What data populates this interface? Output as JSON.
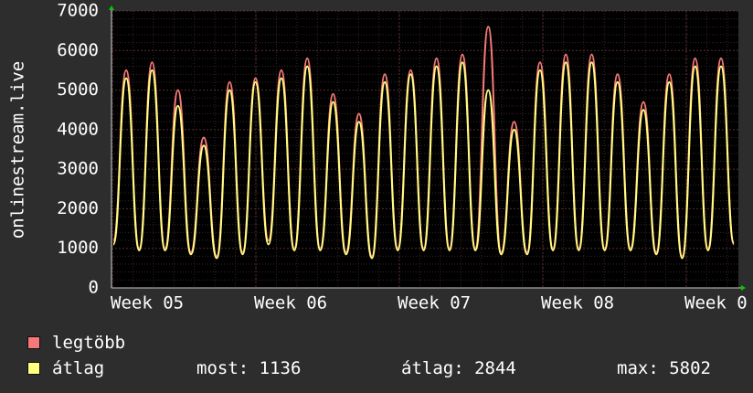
{
  "chart_data": {
    "type": "line",
    "ylabel": "onlinestream.live",
    "ylim": [
      0,
      7000
    ],
    "y_ticks": [
      "0",
      "1000",
      "2000",
      "3000",
      "4000",
      "5000",
      "6000",
      "7000"
    ],
    "x_ticks": [
      "Week 05",
      "Week 06",
      "Week 07",
      "Week 08",
      "Week 0"
    ],
    "grid": true,
    "colors": {
      "background": "#2d2d2d",
      "plot": "#000000",
      "grid": "#5a2e2e",
      "max": "#f77878",
      "avg": "#ffff80",
      "axis": "#00cc00"
    },
    "series": [
      {
        "name": "legtöbb",
        "color": "#f77878",
        "values": [
          1200,
          5500,
          1000,
          5700,
          1000,
          5000,
          900,
          3800,
          800,
          5200,
          900,
          5300,
          1200,
          5500,
          1000,
          5800,
          1000,
          4900,
          900,
          4400,
          800,
          5400,
          1000,
          5500,
          1000,
          5800,
          1000,
          5900,
          1000,
          6600,
          900,
          4200,
          900,
          5700,
          1000,
          5900,
          1000,
          5900,
          1000,
          5400,
          1000,
          4700,
          900,
          5400,
          800,
          5800,
          1000,
          5800,
          1100
        ]
      },
      {
        "name": "átlag",
        "color": "#ffff80",
        "values": [
          1100,
          5300,
          950,
          5500,
          950,
          4600,
          850,
          3600,
          750,
          5000,
          850,
          5200,
          1100,
          5300,
          950,
          5600,
          950,
          4700,
          850,
          4200,
          750,
          5200,
          950,
          5400,
          950,
          5600,
          950,
          5700,
          950,
          5000,
          850,
          4000,
          850,
          5500,
          950,
          5700,
          950,
          5700,
          950,
          5200,
          950,
          4500,
          850,
          5200,
          750,
          5600,
          950,
          5600,
          1136
        ]
      }
    ]
  },
  "legend": {
    "max_label": "legtöbb",
    "avg_label": "átlag"
  },
  "stats": {
    "now": "most: 1136",
    "avg": "átlag: 2844",
    "max": "max: 5802"
  }
}
